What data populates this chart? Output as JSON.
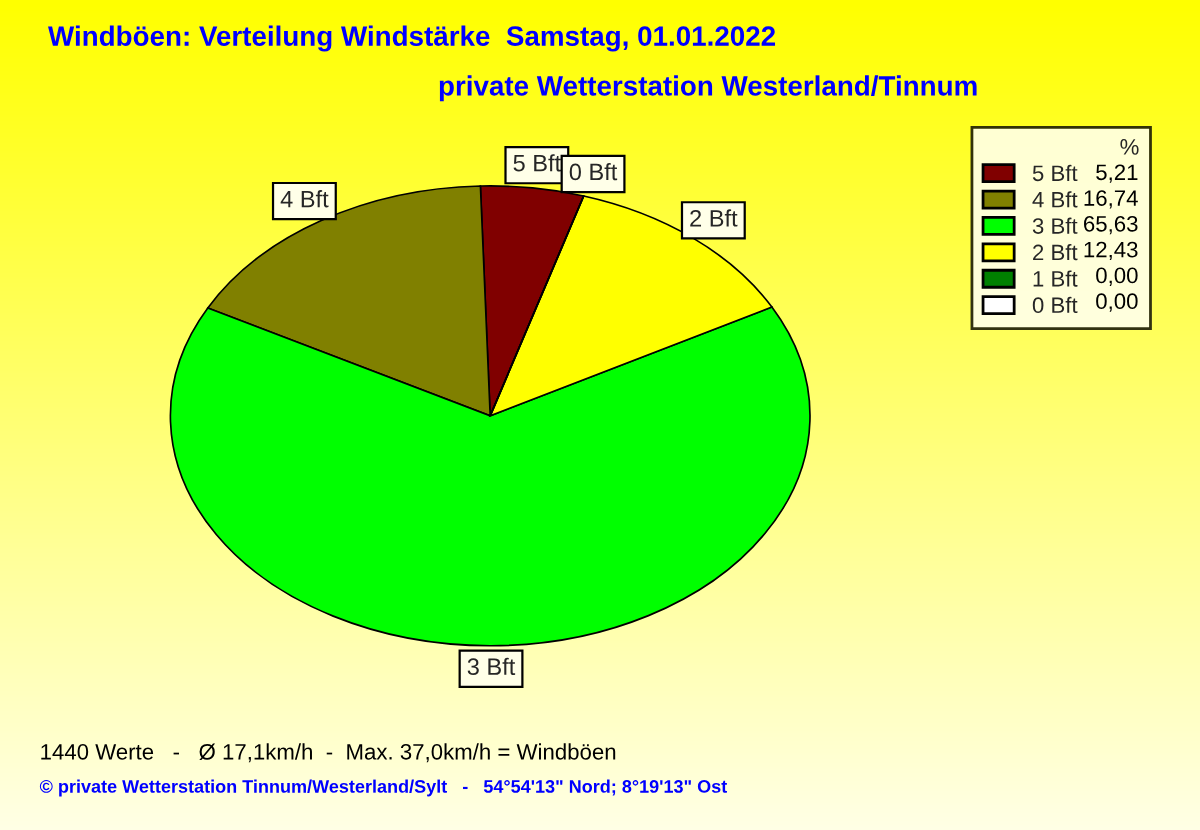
{
  "chart_data": {
    "type": "pie",
    "title": "Windböen: Verteilung Windstärke  Samstag, 01.01.2022",
    "subtitle": "private Wetterstation Westerland/Tinnum",
    "categories": [
      "5 Bft",
      "4 Bft",
      "3 Bft",
      "2 Bft",
      "1 Bft",
      "0 Bft"
    ],
    "values": [
      5.21,
      16.74,
      65.63,
      12.43,
      0.0,
      0.0
    ],
    "value_labels": [
      "5,21",
      "16,74",
      "65,63",
      "12,43",
      "0,00",
      "0,00"
    ],
    "colors": [
      "#800000",
      "#808000",
      "#00ff00",
      "#ffff00",
      "#008000",
      "#ffffff"
    ],
    "legend": "top right",
    "legend_title": "%",
    "annotations": [
      {
        "text": "5 Bft",
        "x": "5 Bft"
      },
      {
        "text": "4 Bft",
        "x": "4 Bft"
      },
      {
        "text": "3 Bft",
        "x": "3 Bft"
      },
      {
        "text": "2 Bft",
        "x": "2 Bft"
      },
      {
        "text": "0 Bft",
        "x": "0 Bft"
      },
      "1440 Werte   -   Ø 17,1km/h  -  Max. 37,0km/h = Windböen",
      "© private Wetterstation Tinnum/Westerland/Sylt   -   54°54'13\" Nord; 8°19'13\" Ost"
    ]
  }
}
